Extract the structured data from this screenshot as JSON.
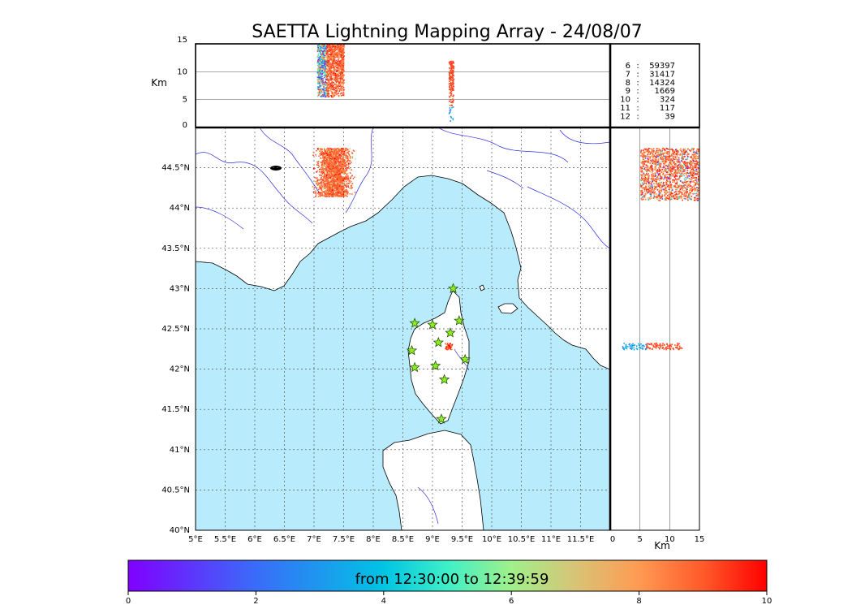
{
  "title": "SAETTA Lightning Mapping Array - 24/08/07",
  "colors": {
    "sea": "#b8ecfc",
    "land": "#ffffff",
    "coast": "#000000",
    "river": "#3030e0",
    "grid": "#555555",
    "station": "#88ee22",
    "counts_highlight": "#ff0000"
  },
  "chart_data": [
    {
      "type": "scatter",
      "name_id": "map",
      "xlim": [
        5,
        12
      ],
      "ylim": [
        40,
        45
      ],
      "x_ticks": [
        "5°E",
        "5.5°E",
        "6°E",
        "6.5°E",
        "7°E",
        "7.5°E",
        "8°E",
        "8.5°E",
        "9°E",
        "9.5°E",
        "10°E",
        "10.5°E",
        "11°E",
        "11.5°E"
      ],
      "x_tick_values": [
        5,
        5.5,
        6,
        6.5,
        7,
        7.5,
        8,
        8.5,
        9,
        9.5,
        10,
        10.5,
        11,
        11.5
      ],
      "y_ticks": [
        "40°N",
        "40.5°N",
        "41°N",
        "41.5°N",
        "42°N",
        "42.5°N",
        "43°N",
        "43.5°N",
        "44°N",
        "44.5°N"
      ],
      "y_tick_values": [
        40,
        40.5,
        41,
        41.5,
        42,
        42.5,
        43,
        43.5,
        44,
        44.5
      ],
      "grid": true,
      "stations": [
        {
          "lon": 9.35,
          "lat": 43.0
        },
        {
          "lon": 8.7,
          "lat": 42.57
        },
        {
          "lon": 9.0,
          "lat": 42.55
        },
        {
          "lon": 9.45,
          "lat": 42.6
        },
        {
          "lon": 9.3,
          "lat": 42.45
        },
        {
          "lon": 9.1,
          "lat": 42.33
        },
        {
          "lon": 8.65,
          "lat": 42.23
        },
        {
          "lon": 9.55,
          "lat": 42.12
        },
        {
          "lon": 8.7,
          "lat": 42.02
        },
        {
          "lon": 9.05,
          "lat": 42.04
        },
        {
          "lon": 9.2,
          "lat": 41.87
        },
        {
          "lon": 9.15,
          "lat": 41.38
        }
      ],
      "clusters": [
        {
          "lon": [
            7.1,
            7.55
          ],
          "lat": [
            44.15,
            44.75
          ],
          "color_time": 8.8,
          "density": "high"
        },
        {
          "lon": [
            9.22,
            9.32
          ],
          "lat": [
            42.25,
            42.33
          ],
          "color_time": 9.2,
          "density": "low"
        }
      ]
    },
    {
      "type": "scatter",
      "name_id": "lon-alt",
      "xlim": [
        5,
        12
      ],
      "ylim": [
        0,
        15
      ],
      "ylabel": "Km",
      "y_ticks": [
        "0",
        "5",
        "10",
        "15"
      ],
      "y_tick_values": [
        0,
        5,
        10,
        15
      ],
      "clusters": [
        {
          "lon": [
            7.05,
            7.5
          ],
          "alt": [
            5.5,
            15
          ],
          "color_time": 8.8
        },
        {
          "lon": [
            9.27,
            9.35
          ],
          "alt": [
            1,
            12
          ],
          "color_time": 9.2
        }
      ]
    },
    {
      "type": "scatter",
      "name_id": "alt-lat",
      "xlim": [
        0,
        15
      ],
      "ylim": [
        40,
        45
      ],
      "xlabel": "Km",
      "x_ticks": [
        "0",
        "5",
        "10",
        "15"
      ],
      "x_tick_values": [
        0,
        5,
        10,
        15
      ],
      "clusters": [
        {
          "alt": [
            5,
            15
          ],
          "lat": [
            44.1,
            44.75
          ],
          "color_time": 8.8
        },
        {
          "alt": [
            2,
            12
          ],
          "lat": [
            42.25,
            42.33
          ],
          "color_time": 9.2
        }
      ]
    },
    {
      "type": "table",
      "name_id": "station-counts",
      "rows": [
        {
          "stations": "6",
          "sep": ":",
          "count": "59397",
          "highlight": false
        },
        {
          "stations": "7",
          "sep": ":",
          "count": "31417",
          "highlight": true
        },
        {
          "stations": "8",
          "sep": ":",
          "count": "14324",
          "highlight": false
        },
        {
          "stations": "9",
          "sep": ":",
          "count": "1669",
          "highlight": false
        },
        {
          "stations": "10",
          "sep": ":",
          "count": "324",
          "highlight": false
        },
        {
          "stations": "11",
          "sep": ":",
          "count": "117",
          "highlight": false
        },
        {
          "stations": "12",
          "sep": ":",
          "count": "39",
          "highlight": false
        }
      ]
    },
    {
      "type": "colorbar",
      "name_id": "time-colorbar",
      "range": [
        0,
        10
      ],
      "ticks": [
        "0",
        "2",
        "4",
        "6",
        "8",
        "10"
      ],
      "tick_values": [
        0,
        2,
        4,
        6,
        8,
        10
      ],
      "label": "from 12:30:00 to 12:39:59",
      "colormap": "rainbow"
    }
  ]
}
